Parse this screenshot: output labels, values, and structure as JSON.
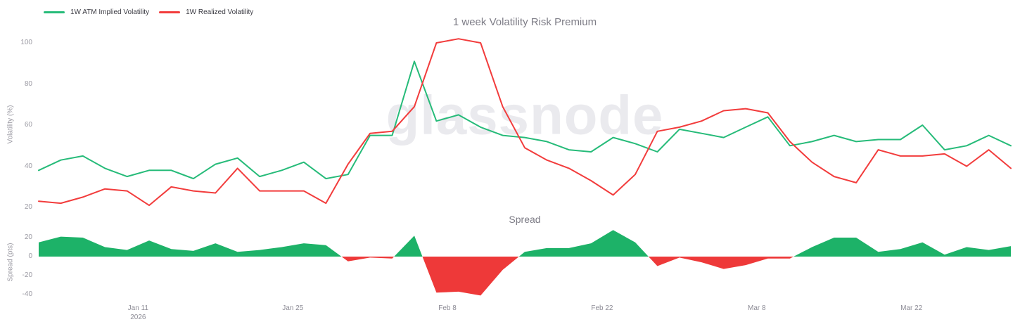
{
  "header": {
    "title": "1 week Volatility Risk Premium",
    "subtitle": "Spread"
  },
  "watermark": "glassnode",
  "legend": {
    "items": [
      {
        "label": "1W ATM Implied Volatility",
        "color": "#26bb79"
      },
      {
        "label": "1W Realized Volatility",
        "color": "#f23c3c"
      }
    ]
  },
  "chart_data": [
    {
      "type": "line",
      "title": "1 week Volatility Risk Premium",
      "xlabel": "",
      "ylabel": "Volatility (%)",
      "ylim": [
        15,
        105
      ],
      "y_ticks": [
        100,
        80,
        60,
        40,
        20
      ],
      "grid": false,
      "legend_position": "top-left",
      "x": [
        "Jan 2",
        "Jan 4",
        "Jan 6",
        "Jan 8",
        "Jan 10",
        "Jan 12",
        "Jan 14",
        "Jan 16",
        "Jan 18",
        "Jan 20",
        "Jan 22",
        "Jan 24",
        "Jan 26",
        "Jan 28",
        "Jan 30",
        "Feb 1",
        "Feb 3",
        "Feb 5",
        "Feb 7",
        "Feb 9",
        "Feb 11",
        "Feb 13",
        "Feb 15",
        "Feb 17",
        "Feb 19",
        "Feb 21",
        "Feb 23",
        "Feb 25",
        "Feb 27",
        "Mar 1",
        "Mar 3",
        "Mar 5",
        "Mar 7",
        "Mar 9",
        "Mar 11",
        "Mar 13",
        "Mar 15",
        "Mar 17",
        "Mar 19",
        "Mar 21",
        "Mar 23",
        "Mar 25",
        "Mar 27",
        "Mar 29",
        "Mar 31"
      ],
      "x_ticks": [
        {
          "label": "Jan 11",
          "sublabel": "2026",
          "day": 9
        },
        {
          "label": "Jan 25",
          "sublabel": "",
          "day": 23
        },
        {
          "label": "Feb 8",
          "sublabel": "",
          "day": 37
        },
        {
          "label": "Feb 22",
          "sublabel": "",
          "day": 51
        },
        {
          "label": "Mar 8",
          "sublabel": "",
          "day": 65
        },
        {
          "label": "Mar 22",
          "sublabel": "",
          "day": 79
        }
      ],
      "series": [
        {
          "name": "1W ATM Implied Volatility",
          "color": "#26bb79",
          "values": [
            38,
            43,
            45,
            39,
            35,
            38,
            38,
            34,
            41,
            44,
            35,
            38,
            42,
            34,
            36,
            55,
            55,
            91,
            62,
            65,
            59,
            55,
            54,
            52,
            48,
            47,
            54,
            51,
            47,
            58,
            56,
            54,
            59,
            64,
            50,
            52,
            55,
            52,
            53,
            53,
            60,
            48,
            50,
            55,
            50
          ]
        },
        {
          "name": "1W Realized Volatility",
          "color": "#f23c3c",
          "values": [
            23,
            22,
            25,
            29,
            28,
            21,
            30,
            28,
            27,
            39,
            28,
            28,
            28,
            22,
            41,
            56,
            57,
            69,
            100,
            102,
            100,
            69,
            49,
            43,
            39,
            33,
            26,
            36,
            57,
            59,
            62,
            67,
            68,
            66,
            52,
            42,
            35,
            32,
            48,
            45,
            45,
            46,
            40,
            48,
            39
          ]
        }
      ]
    },
    {
      "type": "area",
      "title": "Spread",
      "xlabel": "",
      "ylabel": "Spread (pts)",
      "ylim": [
        -45,
        30
      ],
      "y_ticks": [
        20,
        0,
        -20,
        -40
      ],
      "grid": false,
      "derived_from": "implied minus realized",
      "positive_color": "#1db268",
      "negative_color": "#ee3939",
      "values": [
        15,
        21,
        20,
        10,
        7,
        17,
        8,
        6,
        14,
        5,
        7,
        10,
        14,
        12,
        -5,
        -1,
        -2,
        22,
        -38,
        -37,
        -41,
        -14,
        5,
        9,
        9,
        14,
        28,
        15,
        -10,
        -1,
        -6,
        -13,
        -9,
        -2,
        -2,
        10,
        20,
        20,
        5,
        8,
        15,
        2,
        10,
        7,
        11
      ]
    }
  ]
}
